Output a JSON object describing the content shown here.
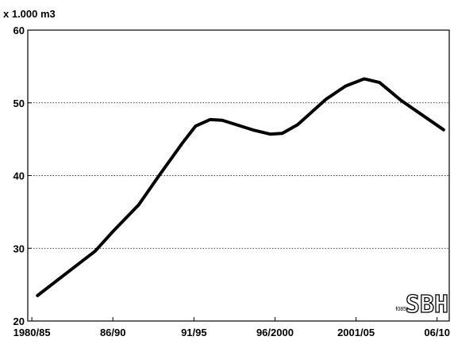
{
  "chart_data": {
    "type": "line",
    "y_label": "x 1.000 m3",
    "x": [
      0.07,
      0.5,
      0.78,
      1.0,
      1.32,
      1.57,
      1.86,
      2.02,
      2.2,
      2.35,
      2.75,
      2.94,
      3.09,
      3.28,
      3.63,
      3.87,
      4.1,
      4.29,
      4.56,
      5.08
    ],
    "series": [
      {
        "color": "#000000",
        "values": [
          23.5,
          27.2,
          29.6,
          32.3,
          36,
          40,
          44.5,
          46.8,
          47.7,
          47.6,
          46.2,
          45.7,
          45.8,
          47,
          50.5,
          52.3,
          53.3,
          52.8,
          50.3,
          46.3
        ]
      }
    ],
    "xlim": [
      -0.05,
      5.15
    ],
    "xticks": [
      {
        "value": 0,
        "label": "1980/85"
      },
      {
        "value": 1,
        "label": "86/90"
      },
      {
        "value": 2,
        "label": "91/95"
      },
      {
        "value": 3,
        "label": "96/2000"
      },
      {
        "value": 4,
        "label": "2001/05"
      },
      {
        "value": 5,
        "label": "06/10"
      }
    ],
    "ylim": [
      20,
      60
    ],
    "yticks": [
      20,
      30,
      40,
      50,
      60
    ],
    "grid": true,
    "annotations": [
      "f085",
      "SBH"
    ]
  }
}
